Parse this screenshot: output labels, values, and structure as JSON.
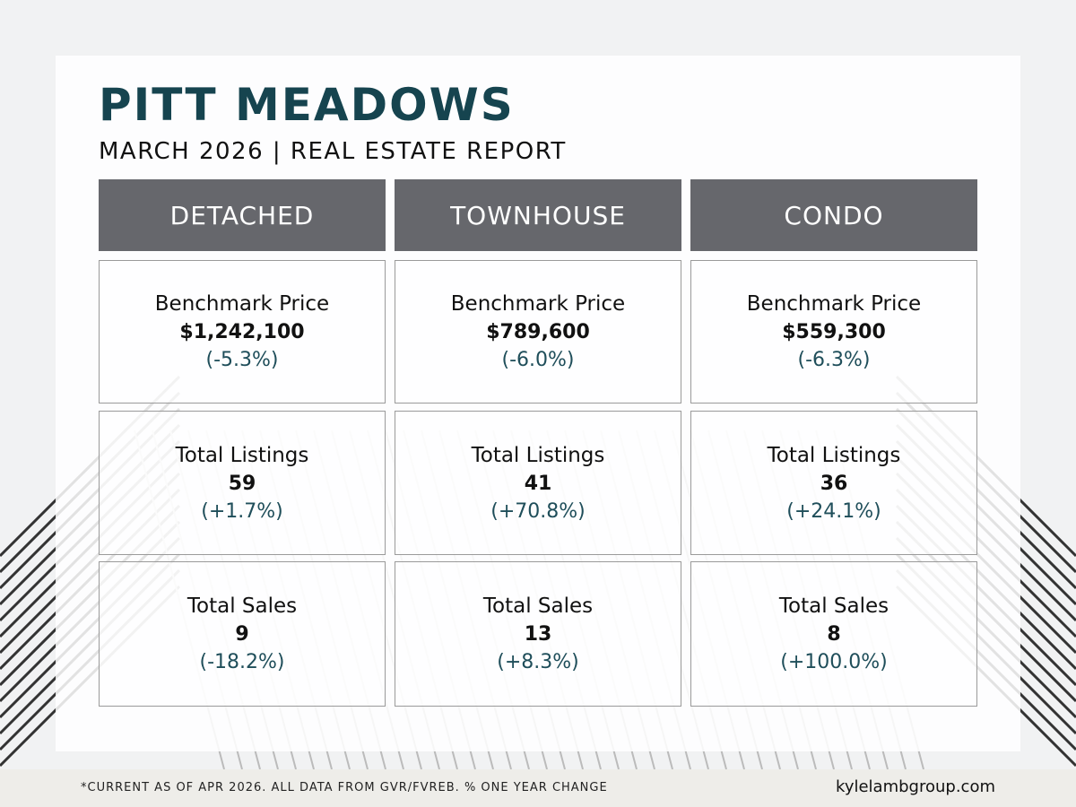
{
  "header": {
    "title": "PITT MEADOWS",
    "subtitle": "MARCH 2026 | REAL ESTATE REPORT"
  },
  "columns": [
    {
      "name": "DETACHED",
      "metrics": [
        {
          "label": "Benchmark Price",
          "value": "$1,242,100",
          "change": "(-5.3%)"
        },
        {
          "label": "Total Listings",
          "value": "59",
          "change": "(+1.7%)"
        },
        {
          "label": "Total Sales",
          "value": "9",
          "change": "(-18.2%)"
        }
      ]
    },
    {
      "name": "TOWNHOUSE",
      "metrics": [
        {
          "label": "Benchmark Price",
          "value": "$789,600",
          "change": "(-6.0%)"
        },
        {
          "label": "Total Listings",
          "value": "41",
          "change": "(+70.8%)"
        },
        {
          "label": "Total Sales",
          "value": "13",
          "change": "(+8.3%)"
        }
      ]
    },
    {
      "name": "CONDO",
      "metrics": [
        {
          "label": "Benchmark Price",
          "value": "$559,300",
          "change": "(-6.3%)"
        },
        {
          "label": "Total Listings",
          "value": "36",
          "change": "(+24.1%)"
        },
        {
          "label": "Total Sales",
          "value": "8",
          "change": "(+100.0%)"
        }
      ]
    }
  ],
  "footer": {
    "note": "*CURRENT AS  OF APR 2026. ALL DATA FROM GVR/FVREB.  % ONE YEAR CHANGE",
    "website": "kylelambgroup.com"
  },
  "colors": {
    "title": "#16444f",
    "header_bg": "#66676c",
    "change_text": "#1f4e5a",
    "footer_bg": "#eeede9"
  }
}
